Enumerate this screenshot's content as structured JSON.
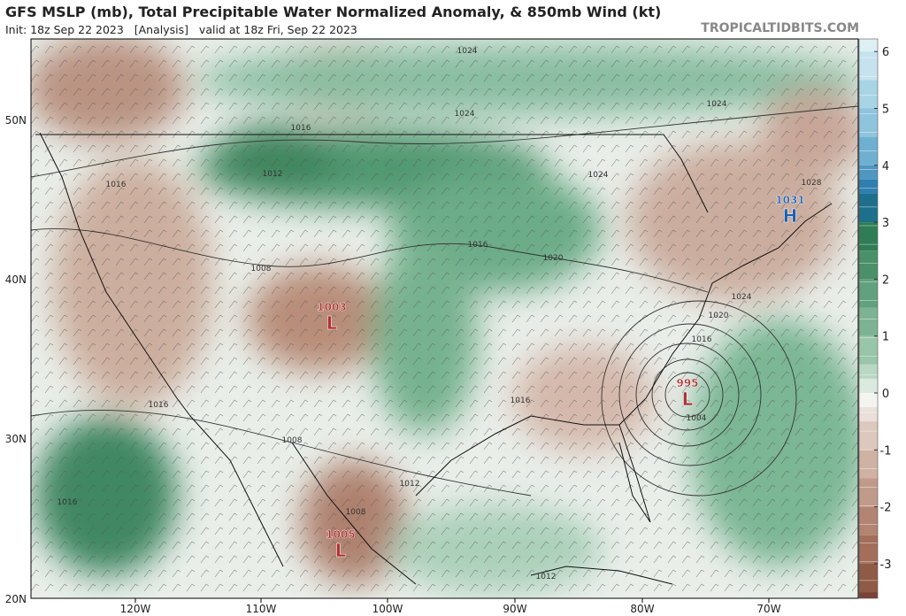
{
  "header": {
    "title": "GFS MSLP (mb), Total Precipitable Water Normalized Anomaly, & 850mb Wind (kt)",
    "subtitle": "Init: 18z Sep 22 2023   [Analysis]   valid at 18z Fri, Sep 22 2023",
    "credit": "TROPICALTIDBITS.COM"
  },
  "map": {
    "lat_labels": [
      "50N",
      "40N",
      "30N",
      "20N"
    ],
    "lon_labels": [
      "120W",
      "110W",
      "100W",
      "90W",
      "80W",
      "70W"
    ],
    "centers": [
      {
        "symbol": "H",
        "pressure": "1031"
      },
      {
        "symbol": "L",
        "pressure": "1003"
      },
      {
        "symbol": "L",
        "pressure": "995"
      },
      {
        "symbol": "L",
        "pressure": "1005"
      }
    ],
    "isobar_labels": [
      "1024",
      "1024",
      "1024",
      "1016",
      "1012",
      "1016",
      "1024",
      "1028",
      "1016",
      "1020",
      "1008",
      "1024",
      "1020",
      "1016",
      "1004",
      "1016",
      "1016",
      "1008",
      "1012",
      "1016",
      "1008",
      "1012"
    ]
  },
  "colorbar": {
    "ticks": [
      6,
      5,
      4,
      3,
      2,
      1,
      0,
      -1,
      -2,
      -3
    ]
  }
}
